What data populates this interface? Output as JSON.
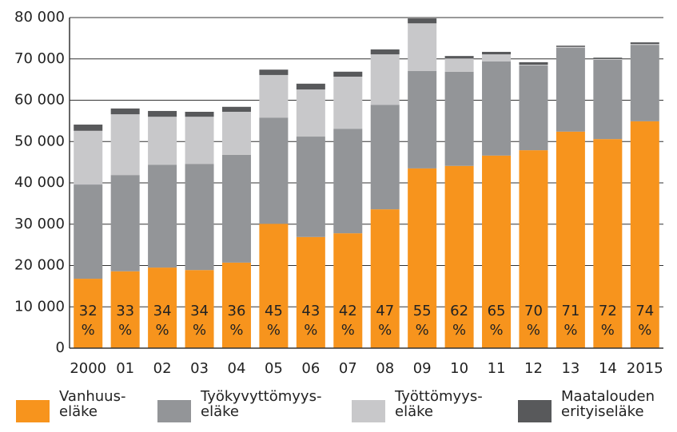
{
  "chart_data": {
    "type": "stacked_bar",
    "categories": [
      "2000",
      "01",
      "02",
      "03",
      "04",
      "05",
      "06",
      "07",
      "08",
      "09",
      "10",
      "11",
      "12",
      "13",
      "14",
      "2015"
    ],
    "series": [
      {
        "name": "Vanhuus-\neläke",
        "color": "#f7941d",
        "values": [
          16800,
          18600,
          19500,
          18900,
          20700,
          30100,
          26900,
          27800,
          33600,
          43500,
          44100,
          46600,
          47900,
          52400,
          50600,
          54900
        ]
      },
      {
        "name": "Työkyvyttömyys-\neläke",
        "color": "#939598",
        "values": [
          22800,
          23300,
          24900,
          25700,
          26100,
          25700,
          24300,
          25300,
          25300,
          23600,
          22800,
          22800,
          20500,
          20300,
          19200,
          18500
        ]
      },
      {
        "name": "Työttömyys-\neläke",
        "color": "#c8c8ca",
        "values": [
          13000,
          14700,
          11600,
          11400,
          10400,
          10300,
          11400,
          12600,
          12200,
          11500,
          3200,
          1700,
          200,
          200,
          200,
          200
        ]
      },
      {
        "name": "Maatalouden\nerityiseläke",
        "color": "#58595b",
        "values": [
          1500,
          1400,
          1400,
          1200,
          1200,
          1300,
          1400,
          1200,
          1200,
          1200,
          600,
          600,
          600,
          300,
          300,
          400
        ]
      }
    ],
    "shares": [
      32,
      33,
      34,
      34,
      36,
      45,
      43,
      42,
      47,
      55,
      62,
      65,
      70,
      71,
      72,
      74
    ],
    "share_unit": "%",
    "ylim": [
      0,
      80000
    ],
    "yticks": [
      {
        "value": 0,
        "label": "0"
      },
      {
        "value": 10000,
        "label": "10 000"
      },
      {
        "value": 20000,
        "label": "20 000"
      },
      {
        "value": 30000,
        "label": "30 000"
      },
      {
        "value": 40000,
        "label": "40 000"
      },
      {
        "value": 50000,
        "label": "50 000"
      },
      {
        "value": 60000,
        "label": "60 000"
      },
      {
        "value": 70000,
        "label": "70 000"
      },
      {
        "value": 80000,
        "label": "80 000"
      }
    ],
    "grid": true
  }
}
